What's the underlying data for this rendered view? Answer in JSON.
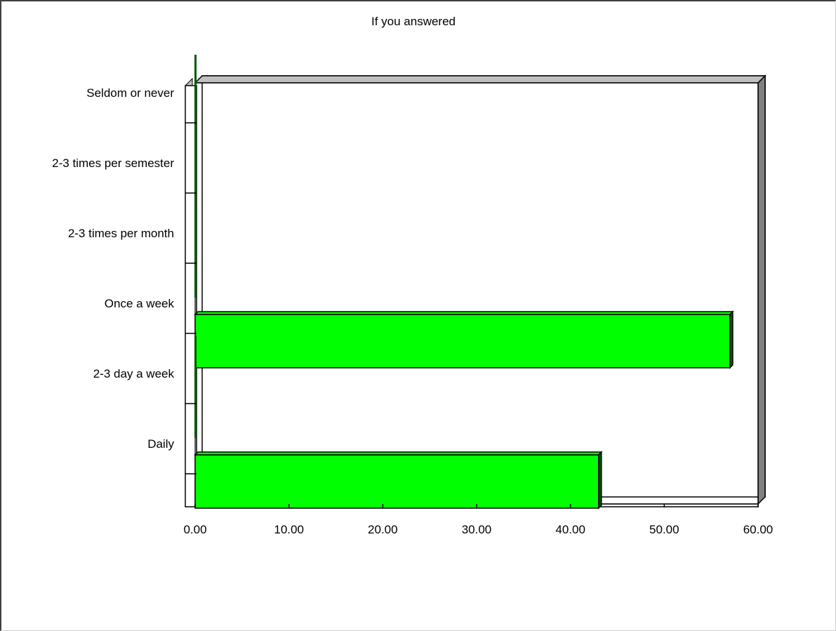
{
  "chart_data": {
    "type": "bar",
    "orientation": "horizontal",
    "title": "If you answered",
    "xlabel": "",
    "ylabel": "",
    "categories": [
      "Seldom or never",
      "2-3 times per semester",
      "2-3 times per month",
      "Once a week",
      "2-3 day a week",
      "Daily"
    ],
    "values": [
      0,
      0,
      0,
      57,
      0,
      43
    ],
    "xlim": [
      0,
      60
    ],
    "xticks": [
      0,
      10,
      20,
      30,
      40,
      50,
      60
    ],
    "tick_labels": [
      "0.00",
      "10.00",
      "20.00",
      "30.00",
      "40.00",
      "50.00",
      "60.00"
    ],
    "grid": false,
    "legend": "none",
    "style": "3d",
    "colors": {
      "bar_fill": "#00ff00",
      "bar_edge": "#000000",
      "bar_side": "#005a00",
      "wall_side": "#808080",
      "wall_top": "#c0c0c0",
      "plot_bg": "#ffffff"
    }
  }
}
